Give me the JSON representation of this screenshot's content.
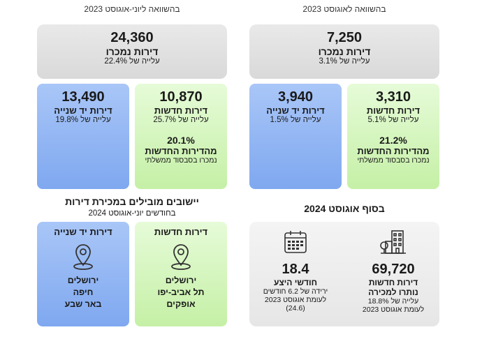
{
  "headers": {
    "right": "בהשוואה לאוגוסט 2023",
    "left": "בהשוואה ליוני-אוגוסט 2023"
  },
  "august": {
    "total": {
      "value": "7,250",
      "label": "דירות נמכרו",
      "change": "עלייה של 3.1%"
    },
    "new": {
      "value": "3,310",
      "label": "דירות חדשות",
      "change": "עלייה של 5.1%",
      "pct": "21.2%",
      "pct_label": "מהדירות החדשות",
      "pct_note": "נמכרו בסבסוד ממשלתי"
    },
    "second": {
      "value": "3,940",
      "label": "דירות יד שנייה",
      "change": "עלייה של 1.5%"
    }
  },
  "summer": {
    "total": {
      "value": "24,360",
      "label": "דירות נמכרו",
      "change": "עלייה של 22.4%"
    },
    "new": {
      "value": "10,870",
      "label": "דירות חדשות",
      "change": "עלייה של 25.7%",
      "pct": "20.1%",
      "pct_label": "מהדירות החדשות",
      "pct_note": "נמכרו בסבסוד ממשלתי"
    },
    "second": {
      "value": "13,490",
      "label": "דירות יד שנייה",
      "change": "עלייה של 19.8%"
    }
  },
  "end_of_august": {
    "title": "בסוף אוגוסט 2024",
    "inventory": {
      "value": "69,720",
      "label1": "דירות חדשות",
      "label2": "נותרו למכירה",
      "note1": "עלייה של 18.8%",
      "note2": "לעומת אוגוסט 2023"
    },
    "months": {
      "value": "18.4",
      "label": "חודשי היצע",
      "note1": "ירידה של 6.2 חודשים",
      "note2": "לעומת אוגוסט 2023",
      "note3": "(24.6)"
    }
  },
  "leading": {
    "title": "יישובים מובילים במכירת דירות",
    "subtitle": "בחודשים יוני-אוגוסט 2024",
    "new": {
      "label": "דירות חדשות",
      "cities": [
        "ירושלים",
        "תל אביב-יפו",
        "אופקים"
      ]
    },
    "second": {
      "label": "דירות יד שנייה",
      "cities": [
        "ירושלים",
        "חיפה",
        "באר שבע"
      ]
    }
  },
  "icons": [
    "building-icon",
    "calendar-icon",
    "map-pin-icon"
  ]
}
